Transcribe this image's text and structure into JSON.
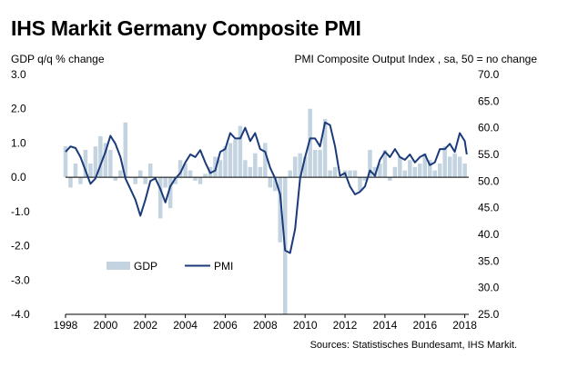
{
  "title": "IHS Markit Germany Composite PMI",
  "left_axis_caption": "GDP q/q % change",
  "right_axis_caption": "PMI Composite Output Index , sa, 50 = no change",
  "source": "Sources: Statistisches Bundesamt, IHS Markit.",
  "colors": {
    "gdp": "#c3d3e0",
    "pmi": "#1a3a7a"
  },
  "chart_data": {
    "type": "bar+line",
    "title": "IHS Markit Germany Composite PMI",
    "x_ticks": [
      "1998",
      "2000",
      "2002",
      "2004",
      "2006",
      "2008",
      "2010",
      "2012",
      "2014",
      "2016",
      "2018"
    ],
    "x_range": [
      1998,
      2018.2
    ],
    "left_axis": {
      "label": "GDP q/q % change",
      "range": [
        -4.0,
        3.0
      ],
      "ticks": [
        "3.0",
        "2.0",
        "1.0",
        "0.0",
        "-1.0",
        "-2.0",
        "-3.0",
        "-4.0"
      ],
      "tick_values": [
        3,
        2,
        1,
        0,
        -1,
        -2,
        -3,
        -4
      ]
    },
    "right_axis": {
      "label": "PMI Composite Output Index , sa, 50 = no change",
      "range": [
        25,
        70
      ],
      "ticks": [
        "70.0",
        "65.0",
        "60.0",
        "55.0",
        "50.0",
        "45.0",
        "40.0",
        "35.0",
        "30.0",
        "25.0"
      ],
      "tick_values": [
        70,
        65,
        60,
        55,
        50,
        45,
        40,
        35,
        30,
        25
      ]
    },
    "legend": [
      {
        "name": "GDP",
        "style": "bar"
      },
      {
        "name": "PMI",
        "style": "line"
      }
    ],
    "gdp": {
      "name": "GDP",
      "t": [
        1998.0,
        1998.25,
        1998.5,
        1998.75,
        1999.0,
        1999.25,
        1999.5,
        1999.75,
        2000.0,
        2000.25,
        2000.5,
        2000.75,
        2001.0,
        2001.25,
        2001.5,
        2001.75,
        2002.0,
        2002.25,
        2002.5,
        2002.75,
        2003.0,
        2003.25,
        2003.5,
        2003.75,
        2004.0,
        2004.25,
        2004.5,
        2004.75,
        2005.0,
        2005.25,
        2005.5,
        2005.75,
        2006.0,
        2006.25,
        2006.5,
        2006.75,
        2007.0,
        2007.25,
        2007.5,
        2007.75,
        2008.0,
        2008.25,
        2008.5,
        2008.75,
        2009.0,
        2009.25,
        2009.5,
        2009.75,
        2010.0,
        2010.25,
        2010.5,
        2010.75,
        2011.0,
        2011.25,
        2011.5,
        2011.75,
        2012.0,
        2012.25,
        2012.5,
        2012.75,
        2013.0,
        2013.25,
        2013.5,
        2013.75,
        2014.0,
        2014.25,
        2014.5,
        2014.75,
        2015.0,
        2015.25,
        2015.5,
        2015.75,
        2016.0,
        2016.25,
        2016.5,
        2016.75,
        2017.0,
        2017.25,
        2017.5,
        2017.75,
        2018.0
      ],
      "values": [
        0.9,
        -0.3,
        0.4,
        -0.2,
        0.8,
        0.4,
        0.9,
        1.2,
        1.0,
        0.8,
        -0.1,
        0.2,
        1.6,
        0.0,
        -0.2,
        0.2,
        -0.2,
        0.4,
        0.0,
        -1.2,
        -0.3,
        -0.9,
        -0.2,
        0.5,
        0.4,
        0.2,
        -0.1,
        -0.2,
        0.1,
        0.3,
        0.6,
        0.5,
        0.9,
        1.0,
        1.1,
        1.5,
        0.5,
        0.3,
        0.7,
        0.3,
        1.0,
        -0.3,
        -0.4,
        -1.9,
        -4.0,
        0.2,
        0.6,
        0.7,
        0.6,
        2.0,
        0.8,
        0.8,
        1.7,
        0.2,
        0.3,
        0.0,
        0.2,
        0.2,
        0.2,
        -0.4,
        -0.1,
        0.8,
        0.3,
        0.4,
        0.8,
        -0.1,
        0.3,
        0.6,
        0.2,
        0.5,
        0.3,
        0.4,
        0.7,
        0.5,
        0.2,
        0.4,
        0.9,
        0.6,
        0.7,
        0.6,
        0.4
      ]
    },
    "pmi": {
      "name": "PMI",
      "t": [
        1998.0,
        1998.25,
        1998.5,
        1998.75,
        1999.0,
        1999.25,
        1999.5,
        1999.75,
        2000.0,
        2000.25,
        2000.5,
        2000.75,
        2001.0,
        2001.25,
        2001.5,
        2001.75,
        2002.0,
        2002.25,
        2002.5,
        2002.75,
        2003.0,
        2003.25,
        2003.5,
        2003.75,
        2004.0,
        2004.25,
        2004.5,
        2004.75,
        2005.0,
        2005.25,
        2005.5,
        2005.75,
        2006.0,
        2006.25,
        2006.5,
        2006.75,
        2007.0,
        2007.25,
        2007.5,
        2007.75,
        2008.0,
        2008.25,
        2008.5,
        2008.75,
        2009.0,
        2009.25,
        2009.5,
        2009.75,
        2010.0,
        2010.25,
        2010.5,
        2010.75,
        2011.0,
        2011.25,
        2011.5,
        2011.75,
        2012.0,
        2012.25,
        2012.5,
        2012.75,
        2013.0,
        2013.25,
        2013.5,
        2013.75,
        2014.0,
        2014.25,
        2014.5,
        2014.75,
        2015.0,
        2015.25,
        2015.5,
        2015.75,
        2016.0,
        2016.25,
        2016.5,
        2016.75,
        2017.0,
        2017.25,
        2017.5,
        2017.75,
        2018.0,
        2018.1
      ],
      "values": [
        55.5,
        56.5,
        56.2,
        54.5,
        52.0,
        49.5,
        50.5,
        53.0,
        55.5,
        58.5,
        57.0,
        54.5,
        50.5,
        48.5,
        46.5,
        43.5,
        46.5,
        50.0,
        50.5,
        48.5,
        46.0,
        49.0,
        50.5,
        51.5,
        53.5,
        55.0,
        54.5,
        55.8,
        53.5,
        51.5,
        52.0,
        55.5,
        56.0,
        59.0,
        58.0,
        58.0,
        60.0,
        57.5,
        59.0,
        56.0,
        55.5,
        52.5,
        50.5,
        47.5,
        37.0,
        36.5,
        41.0,
        50.5,
        54.5,
        58.0,
        58.0,
        56.5,
        61.0,
        60.5,
        56.5,
        51.0,
        51.5,
        49.0,
        47.5,
        48.0,
        49.0,
        52.0,
        51.0,
        54.0,
        55.5,
        54.5,
        56.0,
        54.5,
        54.0,
        55.0,
        53.5,
        54.5,
        55.0,
        53.0,
        53.5,
        56.0,
        56.0,
        57.0,
        55.5,
        59.0,
        57.5,
        55.0
      ]
    }
  }
}
